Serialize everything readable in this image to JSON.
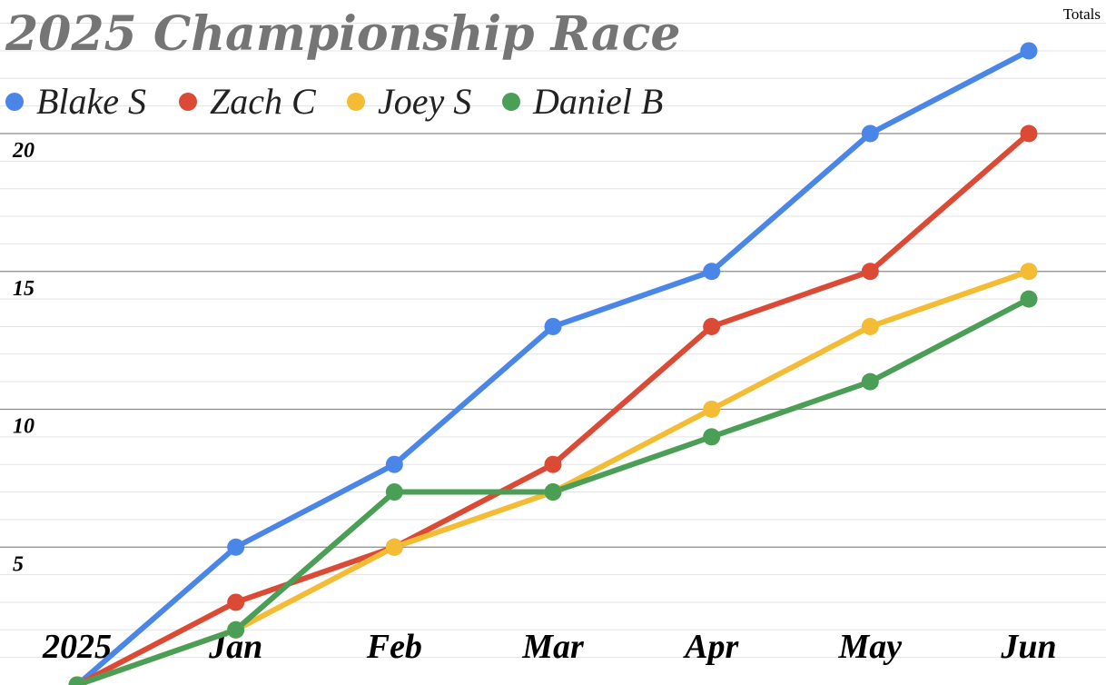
{
  "chart_data": {
    "type": "line",
    "title": "2025 Championship Race",
    "corner_label": "Totals",
    "categories": [
      "2025",
      "Jan",
      "Feb",
      "Mar",
      "Apr",
      "May",
      "Jun"
    ],
    "yticks": [
      5,
      10,
      15,
      20
    ],
    "ylim": [
      0,
      25
    ],
    "grid": true,
    "legend_position": "top-left",
    "series": [
      {
        "name": "Blake S",
        "color": "#4a86e8",
        "values": [
          0,
          5,
          8,
          13,
          15,
          20,
          23
        ]
      },
      {
        "name": "Zach C",
        "color": "#db4a35",
        "values": [
          0,
          3,
          5,
          8,
          13,
          15,
          20
        ]
      },
      {
        "name": "Joey S",
        "color": "#f4bc34",
        "values": [
          0,
          2,
          5,
          7,
          10,
          13,
          15
        ]
      },
      {
        "name": "Daniel B",
        "color": "#4a9e55",
        "values": [
          0,
          2,
          7,
          7,
          9,
          11,
          14
        ]
      }
    ]
  }
}
